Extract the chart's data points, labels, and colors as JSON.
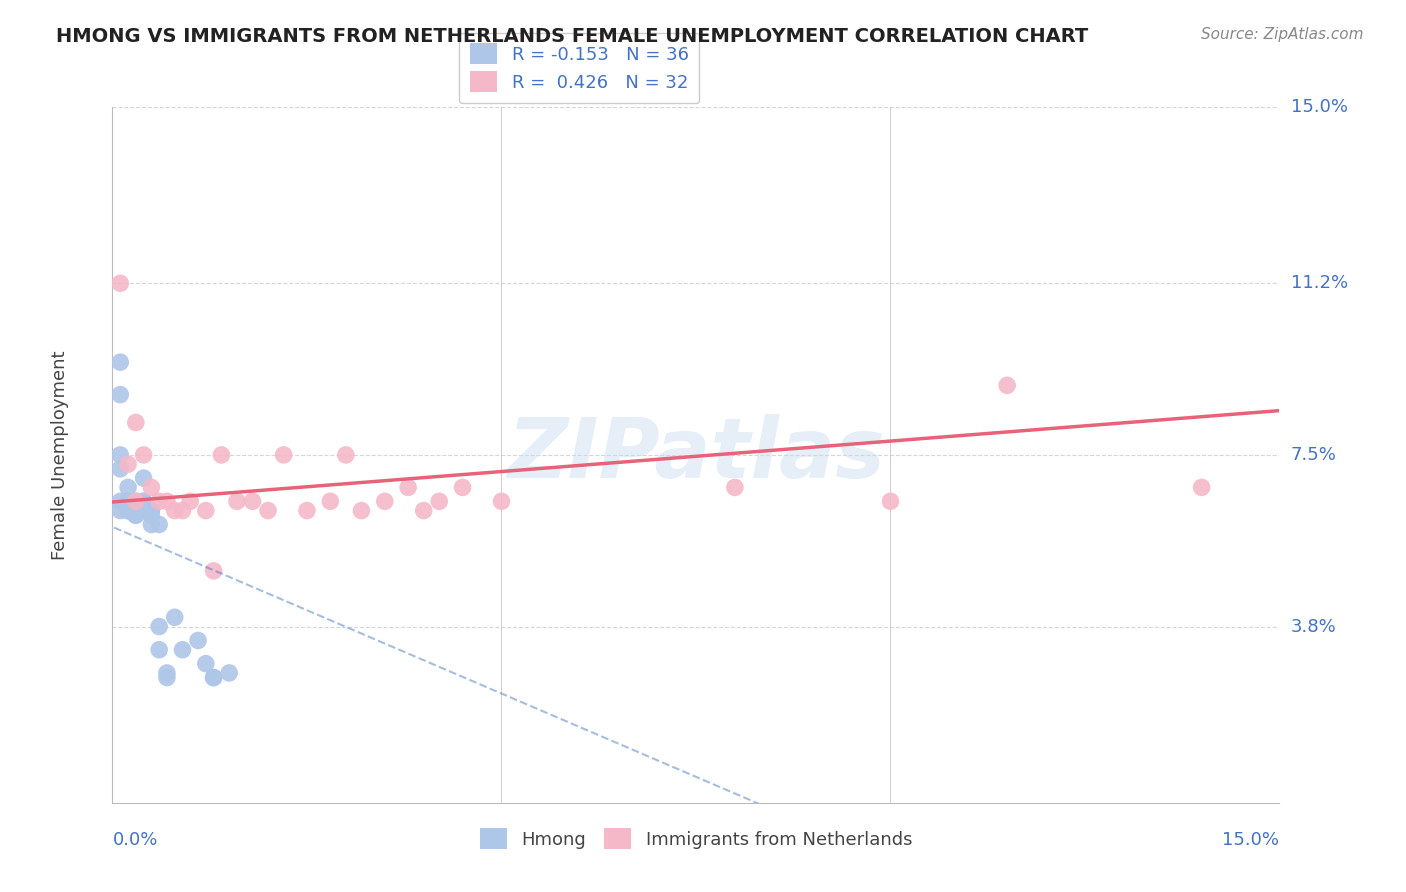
{
  "title": "HMONG VS IMMIGRANTS FROM NETHERLANDS FEMALE UNEMPLOYMENT CORRELATION CHART",
  "source": "Source: ZipAtlas.com",
  "ylabel": "Female Unemployment",
  "xlim": [
    0.0,
    0.15
  ],
  "ylim": [
    0.0,
    0.15
  ],
  "ytick_labels_right": [
    "15.0%",
    "11.2%",
    "7.5%",
    "3.8%"
  ],
  "ytick_vals_right": [
    0.15,
    0.112,
    0.075,
    0.038
  ],
  "watermark": "ZIPatlas",
  "hmong_color": "#aec6e8",
  "netherlands_color": "#f4b8c8",
  "hmong_line_color": "#3a6dbf",
  "netherlands_line_color": "#e8637a",
  "label_color": "#4472c4",
  "background_color": "#ffffff",
  "grid_color": "#cccccc",
  "hmong_x": [
    0.001,
    0.001,
    0.001,
    0.001,
    0.001,
    0.001,
    0.002,
    0.002,
    0.002,
    0.002,
    0.002,
    0.003,
    0.003,
    0.003,
    0.003,
    0.003,
    0.004,
    0.004,
    0.004,
    0.004,
    0.005,
    0.005,
    0.005,
    0.005,
    0.006,
    0.006,
    0.006,
    0.007,
    0.007,
    0.008,
    0.009,
    0.011,
    0.012,
    0.013,
    0.013,
    0.015
  ],
  "hmong_y": [
    0.095,
    0.088,
    0.075,
    0.072,
    0.065,
    0.063,
    0.068,
    0.065,
    0.063,
    0.063,
    0.063,
    0.065,
    0.063,
    0.063,
    0.062,
    0.062,
    0.063,
    0.065,
    0.065,
    0.07,
    0.063,
    0.063,
    0.062,
    0.06,
    0.06,
    0.038,
    0.033,
    0.028,
    0.027,
    0.04,
    0.033,
    0.035,
    0.03,
    0.027,
    0.027,
    0.028
  ],
  "netherlands_x": [
    0.001,
    0.002,
    0.003,
    0.003,
    0.004,
    0.005,
    0.006,
    0.007,
    0.008,
    0.009,
    0.01,
    0.012,
    0.013,
    0.014,
    0.016,
    0.018,
    0.02,
    0.022,
    0.025,
    0.028,
    0.03,
    0.032,
    0.035,
    0.038,
    0.04,
    0.042,
    0.045,
    0.05,
    0.08,
    0.1,
    0.115,
    0.14
  ],
  "netherlands_y": [
    0.112,
    0.073,
    0.082,
    0.065,
    0.075,
    0.068,
    0.065,
    0.065,
    0.063,
    0.063,
    0.065,
    0.063,
    0.05,
    0.075,
    0.065,
    0.065,
    0.063,
    0.075,
    0.063,
    0.065,
    0.075,
    0.063,
    0.065,
    0.068,
    0.063,
    0.065,
    0.068,
    0.065,
    0.068,
    0.065,
    0.09,
    0.068
  ],
  "hmong_R": -0.153,
  "hmong_N": 36,
  "netherlands_R": 0.426,
  "netherlands_N": 32
}
